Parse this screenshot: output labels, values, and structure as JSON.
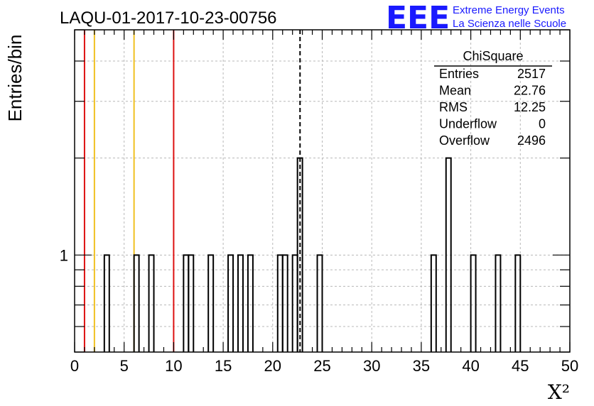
{
  "chart_data": {
    "type": "histogram",
    "title": "LAQU-01-2017-10-23-00756",
    "xlabel": "X²",
    "ylabel": "Entries/bin",
    "xlim": [
      0,
      50
    ],
    "ylim": [
      0.5,
      5
    ],
    "yscale": "log",
    "bin_width": 0.5,
    "grid": true,
    "x_ticks": [
      "0",
      "5",
      "10",
      "15",
      "20",
      "25",
      "30",
      "35",
      "40",
      "45",
      "50"
    ],
    "y_tick_labels": [
      "1"
    ],
    "bins": [
      {
        "x": 3.0,
        "count": 1
      },
      {
        "x": 6.0,
        "count": 1
      },
      {
        "x": 7.5,
        "count": 1
      },
      {
        "x": 11.0,
        "count": 1
      },
      {
        "x": 11.5,
        "count": 1
      },
      {
        "x": 13.5,
        "count": 1
      },
      {
        "x": 15.5,
        "count": 1
      },
      {
        "x": 16.5,
        "count": 1
      },
      {
        "x": 17.5,
        "count": 1
      },
      {
        "x": 20.5,
        "count": 1
      },
      {
        "x": 21.0,
        "count": 1
      },
      {
        "x": 22.0,
        "count": 1
      },
      {
        "x": 22.5,
        "count": 2
      },
      {
        "x": 24.5,
        "count": 1
      },
      {
        "x": 36.0,
        "count": 1
      },
      {
        "x": 37.5,
        "count": 2
      },
      {
        "x": 40.0,
        "count": 1
      },
      {
        "x": 42.5,
        "count": 1
      },
      {
        "x": 44.5,
        "count": 1
      }
    ],
    "reference_lines": [
      {
        "x": 1,
        "color": "#dd1111"
      },
      {
        "x": 2,
        "color": "#f0c020"
      },
      {
        "x": 6,
        "color": "#f0c020"
      },
      {
        "x": 10,
        "color": "#dd1111"
      }
    ],
    "mean_line": {
      "x": 22.76,
      "style": "dashed",
      "color": "#000000"
    },
    "stats": {
      "title": "ChiSquare",
      "rows": [
        {
          "label": "Entries",
          "value": "2517"
        },
        {
          "label": "Mean",
          "value": "22.76"
        },
        {
          "label": "RMS",
          "value": "12.25"
        },
        {
          "label": "Underflow",
          "value": "0"
        },
        {
          "label": "Overflow",
          "value": "2496"
        }
      ]
    }
  },
  "logo": {
    "mark": "EEE",
    "line1": "Extreme Energy Events",
    "line2": "La Scienza nelle Scuole",
    "color": "#1a1aff"
  }
}
